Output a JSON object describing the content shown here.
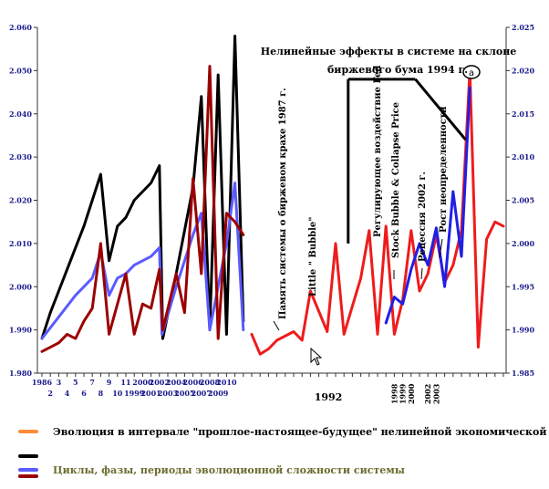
{
  "chart_data": {
    "type": "line",
    "left_axis": {
      "ylim": [
        1.98,
        2.06
      ],
      "ticks": [
        "1.980",
        "1.990",
        "2.000",
        "2.010",
        "2.020",
        "2.030",
        "2.040",
        "2.050",
        "2.060"
      ],
      "color": "#1a1a8c"
    },
    "right_axis": {
      "ylim": [
        1.985,
        2.025
      ],
      "ticks": [
        "1.985",
        "1.990",
        "1.995",
        "2.000",
        "2.005",
        "2.010",
        "2.015",
        "2.020",
        "2.025"
      ],
      "color": "#1a1a8c"
    },
    "x_top_labels": [
      {
        "text": "1986",
        "color": "#1a1a8c",
        "x": 0
      },
      {
        "text": "3",
        "color": "#1a1a8c",
        "x": 2
      },
      {
        "text": "5",
        "color": "#1a1a8c",
        "x": 4
      },
      {
        "text": "7",
        "color": "#1a1a8c",
        "x": 6
      },
      {
        "text": "9",
        "color": "#1a1a8c",
        "x": 8
      },
      {
        "text": "11",
        "color": "#1a1a8c",
        "x": 10
      },
      {
        "text": "2000",
        "color": "#1a1a8c",
        "x": 12
      },
      {
        "text": "2002",
        "color": "#1a1a8c",
        "x": 14
      },
      {
        "text": "2004",
        "color": "#1a1a8c",
        "x": 16
      },
      {
        "text": "2006",
        "color": "#1a1a8c",
        "x": 18
      },
      {
        "text": "2008",
        "color": "#1a1a8c",
        "x": 20
      },
      {
        "text": "2010",
        "color": "#1a1a8c",
        "x": 22
      }
    ],
    "x_bottom_labels": [
      {
        "text": "2",
        "color": "#1a1a8c",
        "x": 1
      },
      {
        "text": "4",
        "color": "#1a1a8c",
        "x": 3
      },
      {
        "text": "6",
        "color": "#1a1a8c",
        "x": 5
      },
      {
        "text": "8",
        "color": "#1a1a8c",
        "x": 7
      },
      {
        "text": "10",
        "color": "#1a1a8c",
        "x": 9
      },
      {
        "text": "1999",
        "color": "#1a1a8c",
        "x": 11
      },
      {
        "text": "2001",
        "color": "#1a1a8c",
        "x": 13
      },
      {
        "text": "2003",
        "color": "#1a1a8c",
        "x": 15
      },
      {
        "text": "2005",
        "color": "#1a1a8c",
        "x": 17
      },
      {
        "text": "2007",
        "color": "#1a1a8c",
        "x": 19
      },
      {
        "text": "2009",
        "color": "#1a1a8c",
        "x": 21
      }
    ],
    "x_right_vertical_labels": [
      {
        "text": "1998",
        "x": 42
      },
      {
        "text": "1999",
        "x": 43
      },
      {
        "text": "2000",
        "x": 44
      },
      {
        "text": "2002",
        "x": 46
      },
      {
        "text": "2003",
        "x": 47
      }
    ],
    "x_bold_label": {
      "text": "1992",
      "x": 35
    },
    "title_lines": [
      "Нелинейные эффекты в системе на склоне",
      "биржевого бума 1994 г."
    ],
    "marker_label": "a",
    "vertical_annotations": [
      {
        "text": "Память системы о биржевом крахе 1987 г."
      },
      {
        "text": "Little \" Bubble\""
      },
      {
        "text": "Регулирующее воздействие Fed"
      },
      {
        "text": "Stock Bubble & Collapse Price"
      },
      {
        "text": "Рецессия 2002 г."
      },
      {
        "text": "Рост неопределенности"
      }
    ],
    "series": [
      {
        "color": "#000000",
        "axis": "left",
        "points": [
          [
            0,
            1.988
          ],
          [
            1,
            1.994
          ],
          [
            2,
            1.999
          ],
          [
            3,
            2.004
          ],
          [
            4,
            2.009
          ],
          [
            5,
            2.014
          ],
          [
            6,
            2.02
          ],
          [
            7,
            2.026
          ],
          [
            8,
            2.006
          ],
          [
            9,
            2.014
          ],
          [
            10,
            2.016
          ],
          [
            11,
            2.02
          ],
          [
            12,
            2.022
          ],
          [
            13,
            2.024
          ],
          [
            14,
            2.028
          ],
          [
            14.4,
            1.988
          ],
          [
            16,
            2.003
          ],
          [
            18,
            2.023
          ],
          [
            19,
            2.044
          ],
          [
            20,
            1.99
          ],
          [
            21,
            2.049
          ],
          [
            22,
            1.989
          ],
          [
            23,
            2.058
          ],
          [
            24,
            1.992
          ]
        ]
      },
      {
        "color": "#5b5bff",
        "axis": "left",
        "points": [
          [
            0,
            1.988
          ],
          [
            2,
            1.993
          ],
          [
            4,
            1.998
          ],
          [
            6,
            2.002
          ],
          [
            7,
            2.008
          ],
          [
            8,
            1.998
          ],
          [
            9,
            2.002
          ],
          [
            10,
            2.003
          ],
          [
            11,
            2.005
          ],
          [
            12,
            2.006
          ],
          [
            13,
            2.007
          ],
          [
            14,
            2.009
          ],
          [
            14.3,
            1.989
          ],
          [
            16,
            2.0
          ],
          [
            18,
            2.012
          ],
          [
            19,
            2.017
          ],
          [
            20,
            1.99
          ],
          [
            22,
            2.01
          ],
          [
            23,
            2.024
          ],
          [
            24,
            1.99
          ]
        ]
      },
      {
        "color": "#9b0000",
        "axis": "left",
        "points": [
          [
            0,
            1.985
          ],
          [
            1,
            1.986
          ],
          [
            2,
            1.987
          ],
          [
            3,
            1.989
          ],
          [
            4,
            1.988
          ],
          [
            5,
            1.992
          ],
          [
            6,
            1.995
          ],
          [
            7,
            2.01
          ],
          [
            8,
            1.989
          ],
          [
            9,
            1.996
          ],
          [
            10,
            2.003
          ],
          [
            11,
            1.989
          ],
          [
            12,
            1.996
          ],
          [
            13,
            1.995
          ],
          [
            14,
            2.004
          ],
          [
            14.4,
            1.99
          ],
          [
            16,
            2.003
          ],
          [
            17,
            1.994
          ],
          [
            18,
            2.025
          ],
          [
            19,
            2.003
          ],
          [
            20,
            2.051
          ],
          [
            21,
            1.988
          ],
          [
            22,
            2.017
          ],
          [
            23,
            2.015
          ],
          [
            24,
            2.012
          ]
        ]
      },
      {
        "color": "#ee1c1c",
        "axis": "right",
        "points": [
          [
            25,
            1.9895
          ],
          [
            26,
            1.9872
          ],
          [
            27,
            1.9878
          ],
          [
            28,
            1.9888
          ],
          [
            30,
            1.9898
          ],
          [
            31,
            1.9888
          ],
          [
            32,
            1.9945
          ],
          [
            34,
            1.9898
          ],
          [
            35,
            2.0
          ],
          [
            36,
            1.9895
          ],
          [
            38,
            1.996
          ],
          [
            39,
            2.0015
          ],
          [
            40,
            1.9895
          ],
          [
            41,
            2.002
          ],
          [
            42,
            1.9895
          ],
          [
            43,
            1.9935
          ],
          [
            44,
            2.0015
          ],
          [
            45,
            1.9945
          ],
          [
            46,
            1.9965
          ],
          [
            47,
            2.001
          ],
          [
            48,
            1.9955
          ],
          [
            49,
            1.9975
          ],
          [
            50,
            2.0015
          ],
          [
            51,
            2.02
          ],
          [
            52,
            1.988
          ],
          [
            53,
            2.0005
          ],
          [
            54,
            2.0025
          ],
          [
            55,
            2.002
          ]
        ]
      },
      {
        "color": "#1f1fe6",
        "axis": "right",
        "points": [
          [
            41,
            1.9908
          ],
          [
            42,
            1.9938
          ],
          [
            43,
            1.993
          ],
          [
            44,
            1.997
          ],
          [
            45,
            2.0
          ],
          [
            46,
            1.9975
          ],
          [
            47,
            2.0018
          ],
          [
            48,
            1.995
          ],
          [
            49,
            2.006
          ],
          [
            50,
            1.9985
          ],
          [
            51,
            2.018
          ]
        ]
      }
    ],
    "annotation_lines": [
      {
        "color": "#000000",
        "from": [
          36.5,
          2.019
        ],
        "to": [
          36.5,
          2.0
        ],
        "axis": "right"
      },
      {
        "color": "#000000",
        "from": [
          36.5,
          2.019
        ],
        "to": [
          44.5,
          2.019
        ],
        "axis": "right"
      },
      {
        "color": "#000000",
        "from": [
          44.5,
          2.019
        ],
        "to": [
          50.5,
          2.012
        ],
        "axis": "right"
      }
    ],
    "legend": [
      {
        "color": "#ff8c3a",
        "label": "Эволюция в интервале \"прошлое-настоящее-будущее\" нелинейной экономической системы",
        "text_color": "#000000"
      },
      {
        "color": "#000000",
        "label": "",
        "text_color": "#000000"
      },
      {
        "color": "#5b5bff",
        "label": "Циклы, фазы, периоды эволюционной сложности системы",
        "text_color": "#6b6b2e"
      },
      {
        "color": "#9b0000",
        "label": "",
        "text_color": "#000000"
      }
    ]
  }
}
